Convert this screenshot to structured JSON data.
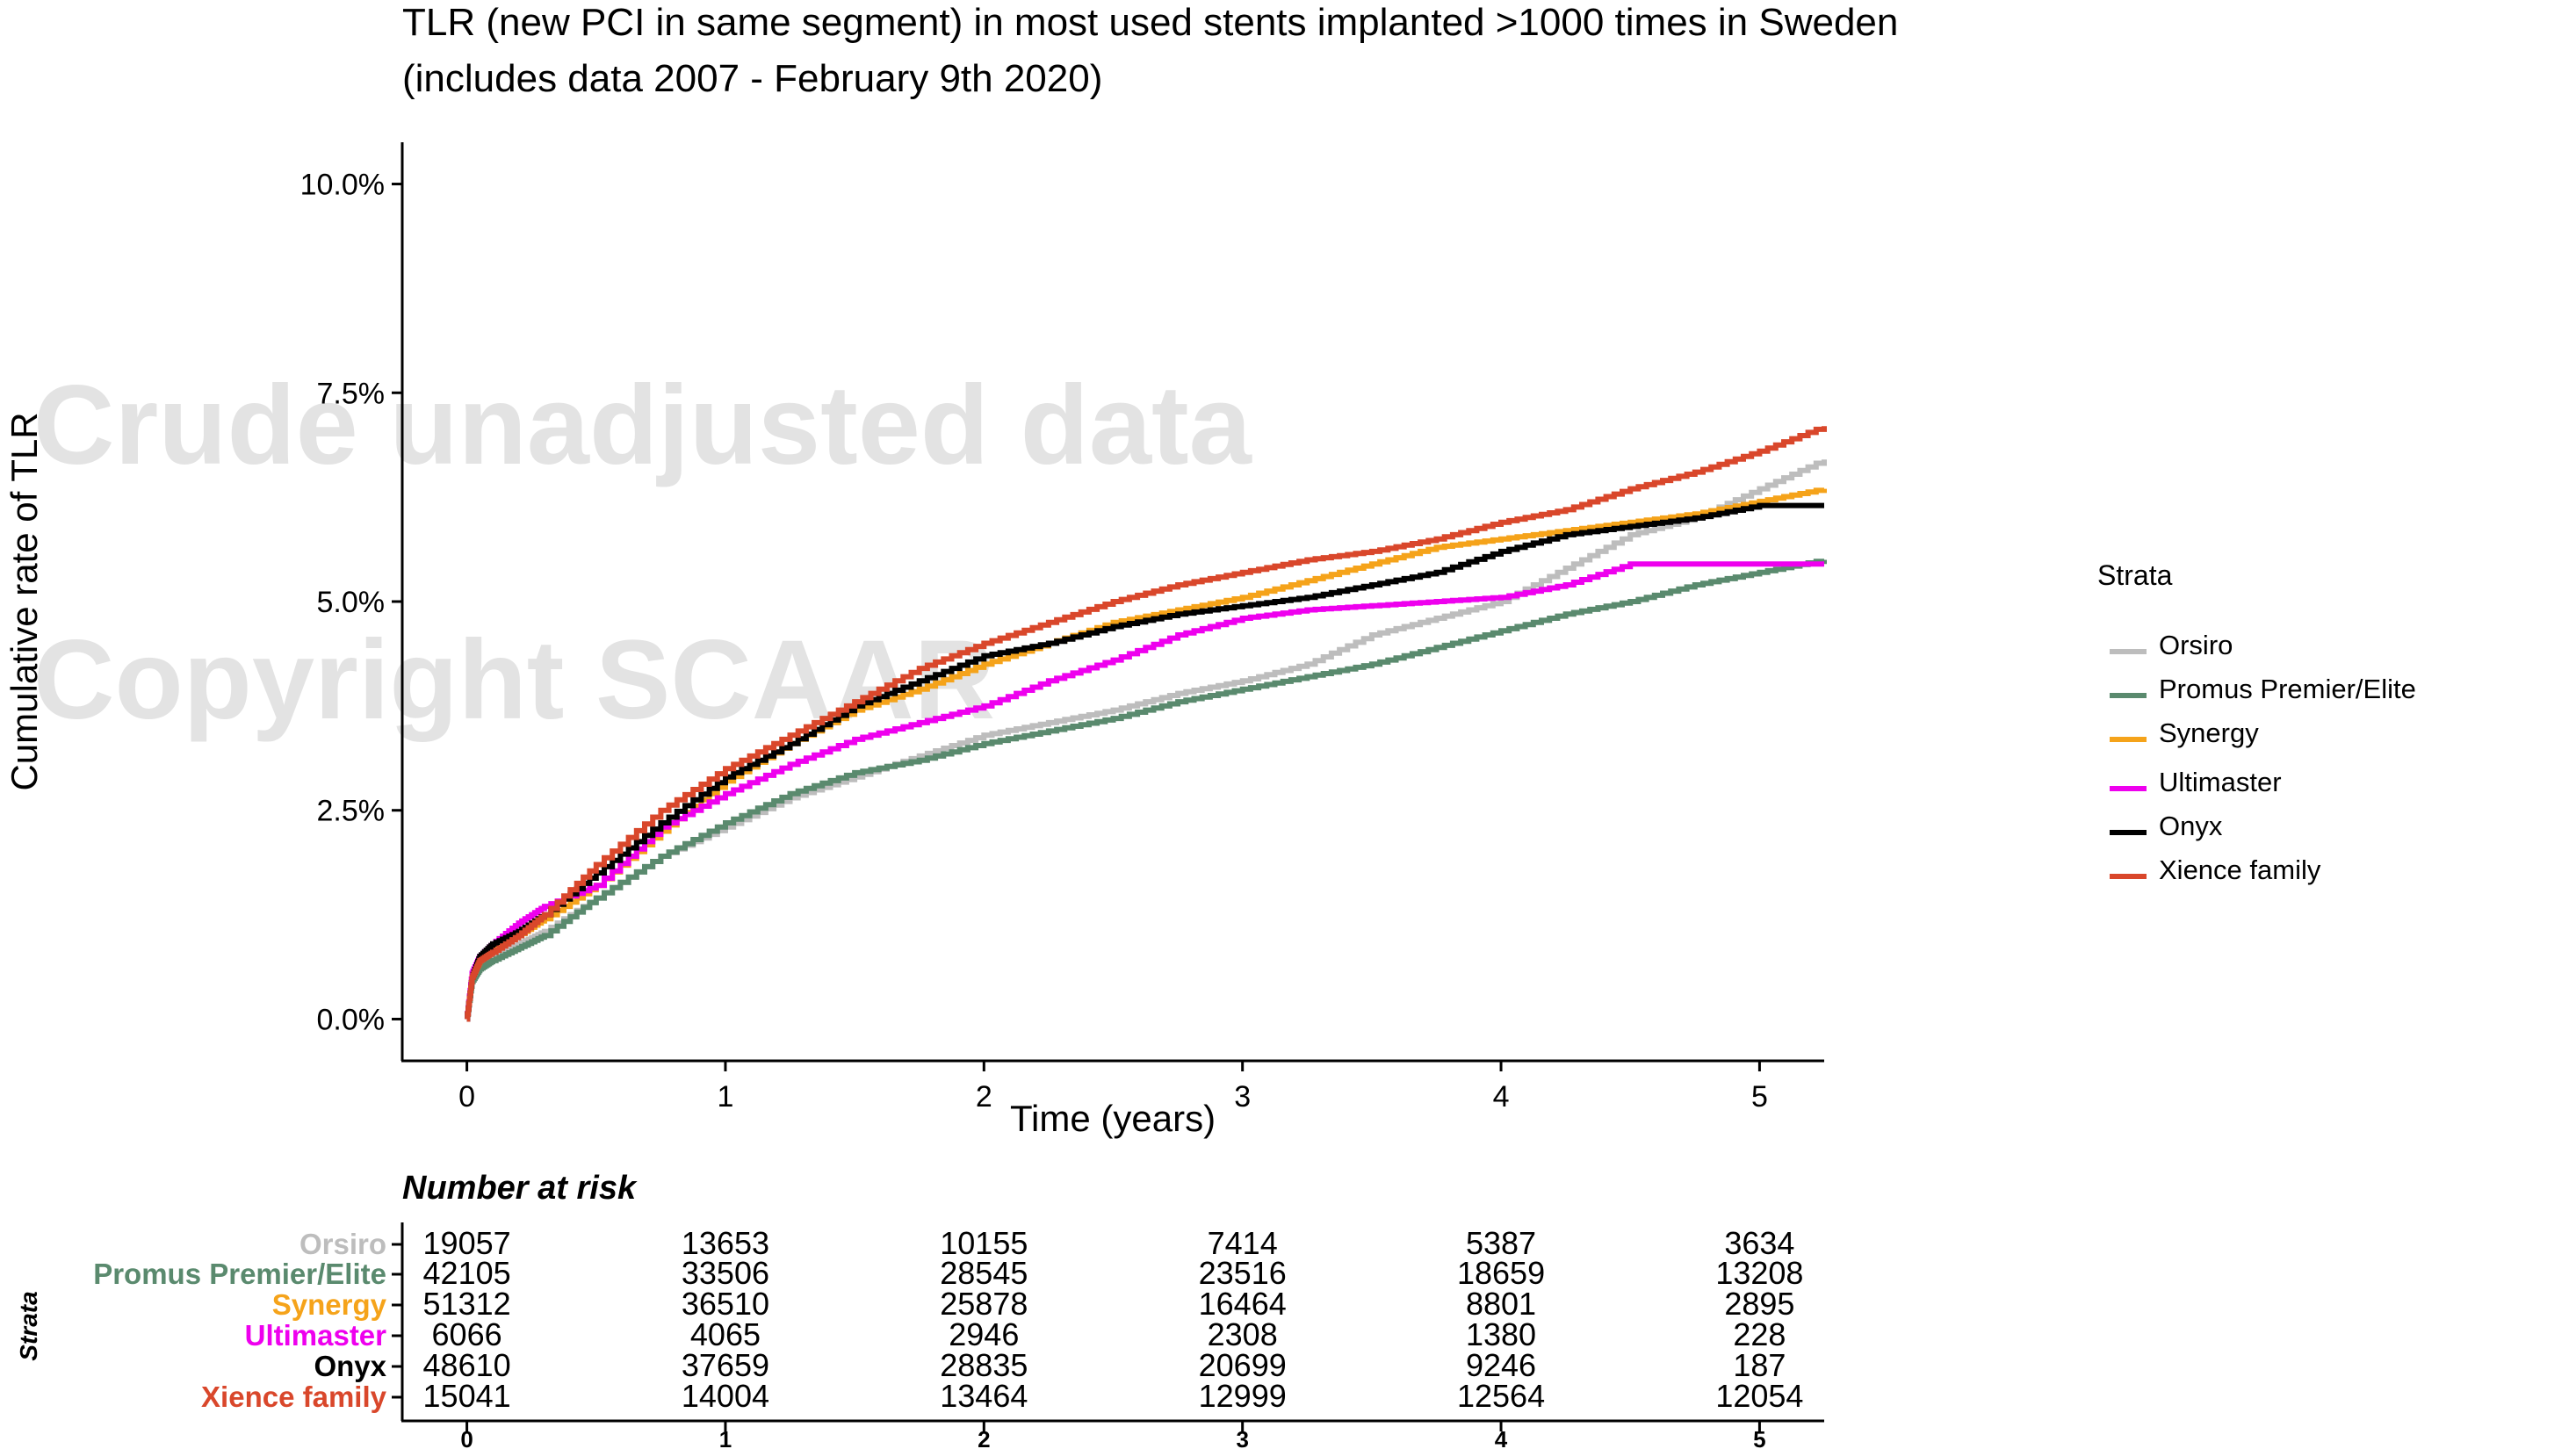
{
  "chart_data": {
    "type": "line",
    "title_line1": "TLR (new PCI in same segment) in most used stents implanted >1000 times in Sweden",
    "title_line2": "(includes data 2007 - February 9th 2020)",
    "xlabel": "Time (years)",
    "ylabel": "Cumulative rate of TLR",
    "xlim": [
      -0.25,
      5.25
    ],
    "ylim": [
      -0.5,
      10.5
    ],
    "x_ticks": [
      0,
      1,
      2,
      3,
      4,
      5
    ],
    "y_ticks": [
      0,
      2.5,
      5,
      7.5,
      10
    ],
    "y_tick_labels": [
      "0.0%",
      "2.5%",
      "5.0%",
      "7.5%",
      "10.0%"
    ],
    "grid": false,
    "legend_title": "Strata",
    "legend_position": "right",
    "watermark": [
      "Crude unadjusted data",
      "Copyright SCAAR"
    ],
    "series": [
      {
        "name": "Orsiro",
        "color": "#bdbdbd",
        "x": [
          0,
          0.02,
          0.05,
          0.1,
          0.2,
          0.3,
          0.5,
          0.75,
          1.0,
          1.25,
          1.5,
          1.75,
          2.0,
          2.25,
          2.5,
          2.75,
          3.0,
          3.25,
          3.5,
          3.75,
          4.0,
          4.25,
          4.5,
          4.75,
          5.0,
          5.25
        ],
        "y": [
          0,
          0.45,
          0.6,
          0.75,
          0.9,
          1.05,
          1.45,
          1.95,
          2.3,
          2.65,
          2.9,
          3.15,
          3.4,
          3.55,
          3.7,
          3.9,
          4.05,
          4.25,
          4.6,
          4.8,
          5.0,
          5.4,
          5.8,
          6.0,
          6.35,
          6.7
        ]
      },
      {
        "name": "Promus Premier/Elite",
        "color": "#5a8a6e",
        "x": [
          0,
          0.02,
          0.05,
          0.1,
          0.2,
          0.3,
          0.5,
          0.75,
          1.0,
          1.25,
          1.5,
          1.75,
          2.0,
          2.25,
          2.5,
          2.75,
          3.0,
          3.25,
          3.5,
          3.75,
          4.0,
          4.25,
          4.5,
          4.75,
          5.0,
          5.25
        ],
        "y": [
          0,
          0.45,
          0.6,
          0.7,
          0.85,
          1.0,
          1.45,
          1.95,
          2.35,
          2.7,
          2.95,
          3.1,
          3.3,
          3.45,
          3.6,
          3.8,
          3.95,
          4.1,
          4.25,
          4.45,
          4.65,
          4.85,
          5.0,
          5.2,
          5.35,
          5.5
        ]
      },
      {
        "name": "Synergy",
        "color": "#f5a31a",
        "x": [
          0,
          0.02,
          0.05,
          0.1,
          0.2,
          0.3,
          0.5,
          0.75,
          1.0,
          1.25,
          1.5,
          1.75,
          2.0,
          2.25,
          2.5,
          2.75,
          3.0,
          3.25,
          3.5,
          3.75,
          4.0,
          4.25,
          4.5,
          4.75,
          5.0,
          5.25
        ],
        "y": [
          0,
          0.5,
          0.7,
          0.85,
          1.0,
          1.2,
          1.6,
          2.25,
          2.85,
          3.3,
          3.7,
          3.95,
          4.25,
          4.5,
          4.75,
          4.9,
          5.05,
          5.25,
          5.45,
          5.65,
          5.75,
          5.85,
          5.95,
          6.05,
          6.2,
          6.35
        ]
      },
      {
        "name": "Ultimaster",
        "color": "#ee00ee",
        "x": [
          0,
          0.02,
          0.05,
          0.1,
          0.2,
          0.3,
          0.5,
          0.75,
          1.0,
          1.25,
          1.5,
          1.75,
          2.0,
          2.25,
          2.5,
          2.75,
          3.0,
          3.25,
          3.5,
          3.75,
          4.0,
          4.25,
          4.5,
          4.75,
          5.0,
          5.25
        ],
        "y": [
          0,
          0.55,
          0.75,
          0.9,
          1.15,
          1.35,
          1.6,
          2.3,
          2.7,
          3.05,
          3.35,
          3.55,
          3.75,
          4.05,
          4.3,
          4.6,
          4.8,
          4.9,
          4.95,
          5.0,
          5.05,
          5.2,
          5.45,
          5.45,
          5.45,
          5.45
        ]
      },
      {
        "name": "Onyx",
        "color": "#000000",
        "x": [
          0,
          0.02,
          0.05,
          0.1,
          0.2,
          0.3,
          0.5,
          0.75,
          1.0,
          1.25,
          1.5,
          1.75,
          2.0,
          2.25,
          2.5,
          2.75,
          3.0,
          3.25,
          3.5,
          3.75,
          4.0,
          4.25,
          4.5,
          4.75,
          5.0,
          5.25
        ],
        "y": [
          0,
          0.5,
          0.75,
          0.9,
          1.05,
          1.25,
          1.75,
          2.35,
          2.9,
          3.3,
          3.75,
          4.05,
          4.35,
          4.5,
          4.7,
          4.85,
          4.95,
          5.05,
          5.2,
          5.35,
          5.6,
          5.8,
          5.9,
          6.0,
          6.15,
          6.15
        ]
      },
      {
        "name": "Xience family",
        "color": "#d9472b",
        "x": [
          0,
          0.02,
          0.05,
          0.1,
          0.2,
          0.3,
          0.5,
          0.75,
          1.0,
          1.25,
          1.5,
          1.75,
          2.0,
          2.25,
          2.5,
          2.75,
          3.0,
          3.25,
          3.5,
          3.75,
          4.0,
          4.25,
          4.5,
          4.75,
          5.0,
          5.25
        ],
        "y": [
          0,
          0.5,
          0.7,
          0.8,
          1.0,
          1.25,
          1.85,
          2.5,
          3.0,
          3.4,
          3.8,
          4.2,
          4.5,
          4.75,
          5.0,
          5.2,
          5.35,
          5.5,
          5.6,
          5.75,
          5.95,
          6.1,
          6.35,
          6.55,
          6.8,
          7.1
        ]
      }
    ]
  },
  "risk_table": {
    "title": "Number at risk",
    "side_label": "Strata",
    "times": [
      0,
      1,
      2,
      3,
      4,
      5
    ],
    "rows": [
      {
        "name": "Orsiro",
        "color": "#bdbdbd",
        "values": [
          "19057",
          "13653",
          "10155",
          "7414",
          "5387",
          "3634"
        ]
      },
      {
        "name": "Promus Premier/Elite",
        "color": "#5a8a6e",
        "values": [
          "42105",
          "33506",
          "28545",
          "23516",
          "18659",
          "13208"
        ]
      },
      {
        "name": "Synergy",
        "color": "#f5a31a",
        "values": [
          "51312",
          "36510",
          "25878",
          "16464",
          "8801",
          "2895"
        ]
      },
      {
        "name": "Ultimaster",
        "color": "#ee00ee",
        "values": [
          "6066",
          "4065",
          "2946",
          "2308",
          "1380",
          "228"
        ]
      },
      {
        "name": "Onyx",
        "color": "#000000",
        "values": [
          "48610",
          "37659",
          "28835",
          "20699",
          "9246",
          "187"
        ]
      },
      {
        "name": "Xience family",
        "color": "#d9472b",
        "values": [
          "15041",
          "14004",
          "13464",
          "12999",
          "12564",
          "12054"
        ]
      }
    ]
  }
}
